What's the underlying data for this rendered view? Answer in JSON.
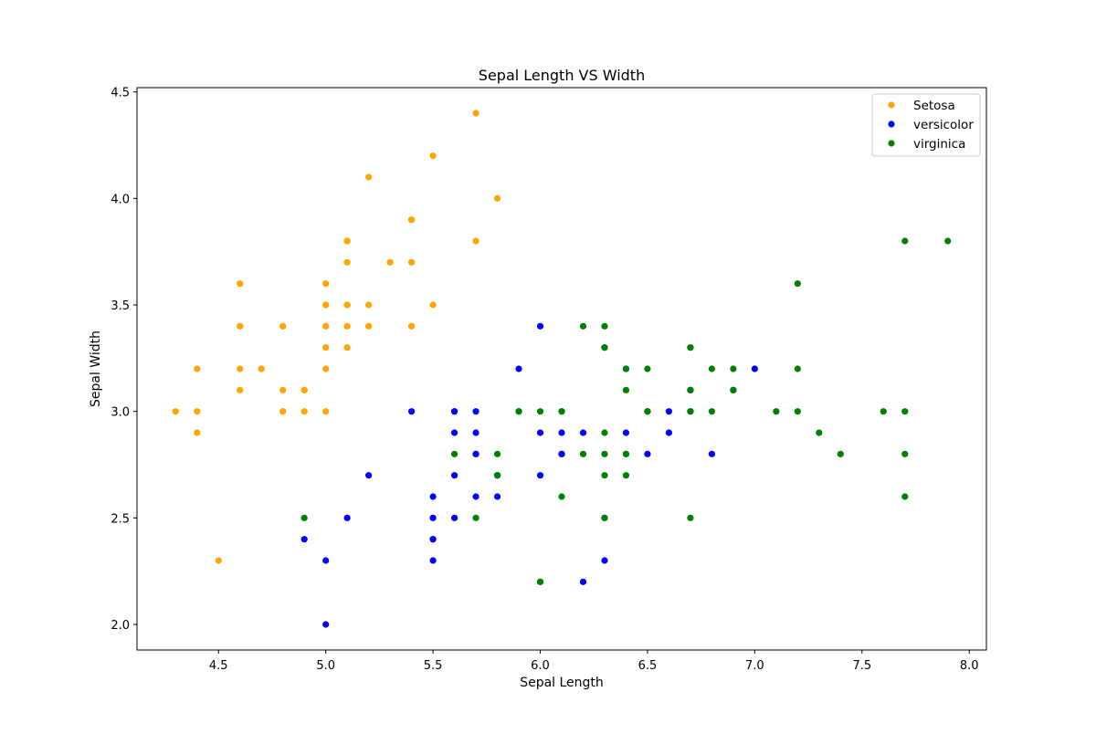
{
  "chart_data": {
    "type": "scatter",
    "title": "Sepal Length VS Width",
    "xlabel": "Sepal Length",
    "ylabel": "Sepal Width",
    "xlim": [
      4.12,
      8.08
    ],
    "ylim": [
      1.88,
      4.52
    ],
    "xticks": [
      "4.5",
      "5.0",
      "5.5",
      "6.0",
      "6.5",
      "7.0",
      "7.5",
      "8.0"
    ],
    "yticks": [
      "2.0",
      "2.5",
      "3.0",
      "3.5",
      "4.0",
      "4.5"
    ],
    "grid": false,
    "legend_position": "top-right",
    "series": [
      {
        "name": "Setosa",
        "color": "#ffa500",
        "points": [
          [
            5.1,
            3.5
          ],
          [
            4.9,
            3.0
          ],
          [
            4.7,
            3.2
          ],
          [
            4.6,
            3.1
          ],
          [
            5.0,
            3.6
          ],
          [
            5.4,
            3.9
          ],
          [
            4.6,
            3.4
          ],
          [
            5.0,
            3.4
          ],
          [
            4.4,
            2.9
          ],
          [
            4.9,
            3.1
          ],
          [
            5.4,
            3.7
          ],
          [
            4.8,
            3.4
          ],
          [
            4.8,
            3.0
          ],
          [
            4.3,
            3.0
          ],
          [
            5.8,
            4.0
          ],
          [
            5.7,
            4.4
          ],
          [
            5.4,
            3.9
          ],
          [
            5.1,
            3.5
          ],
          [
            5.7,
            3.8
          ],
          [
            5.1,
            3.8
          ],
          [
            5.4,
            3.4
          ],
          [
            5.1,
            3.7
          ],
          [
            4.6,
            3.6
          ],
          [
            5.1,
            3.3
          ],
          [
            4.8,
            3.4
          ],
          [
            5.0,
            3.0
          ],
          [
            5.0,
            3.4
          ],
          [
            5.2,
            3.5
          ],
          [
            5.2,
            3.4
          ],
          [
            4.7,
            3.2
          ],
          [
            4.8,
            3.1
          ],
          [
            5.4,
            3.4
          ],
          [
            5.2,
            4.1
          ],
          [
            5.5,
            4.2
          ],
          [
            4.9,
            3.1
          ],
          [
            5.0,
            3.2
          ],
          [
            5.5,
            3.5
          ],
          [
            4.9,
            3.1
          ],
          [
            4.4,
            3.0
          ],
          [
            5.1,
            3.4
          ],
          [
            5.0,
            3.5
          ],
          [
            4.5,
            2.3
          ],
          [
            4.4,
            3.2
          ],
          [
            5.0,
            3.5
          ],
          [
            5.1,
            3.8
          ],
          [
            4.8,
            3.0
          ],
          [
            5.1,
            3.8
          ],
          [
            4.6,
            3.2
          ],
          [
            5.3,
            3.7
          ],
          [
            5.0,
            3.3
          ]
        ]
      },
      {
        "name": "versicolor",
        "color": "#0000ff",
        "points": [
          [
            7.0,
            3.2
          ],
          [
            6.4,
            3.2
          ],
          [
            6.9,
            3.1
          ],
          [
            5.5,
            2.3
          ],
          [
            6.5,
            2.8
          ],
          [
            5.7,
            2.8
          ],
          [
            6.3,
            3.3
          ],
          [
            4.9,
            2.4
          ],
          [
            6.6,
            2.9
          ],
          [
            5.2,
            2.7
          ],
          [
            5.0,
            2.0
          ],
          [
            5.9,
            3.0
          ],
          [
            6.0,
            2.2
          ],
          [
            6.1,
            2.9
          ],
          [
            5.6,
            2.9
          ],
          [
            6.7,
            3.1
          ],
          [
            5.6,
            3.0
          ],
          [
            5.8,
            2.7
          ],
          [
            6.2,
            2.2
          ],
          [
            5.6,
            2.5
          ],
          [
            5.9,
            3.2
          ],
          [
            6.1,
            2.8
          ],
          [
            6.3,
            2.5
          ],
          [
            6.1,
            2.8
          ],
          [
            6.4,
            2.9
          ],
          [
            6.6,
            3.0
          ],
          [
            6.8,
            2.8
          ],
          [
            6.7,
            3.0
          ],
          [
            6.0,
            2.9
          ],
          [
            5.7,
            2.6
          ],
          [
            5.5,
            2.4
          ],
          [
            5.5,
            2.4
          ],
          [
            5.8,
            2.7
          ],
          [
            6.0,
            2.7
          ],
          [
            5.4,
            3.0
          ],
          [
            6.0,
            3.4
          ],
          [
            6.7,
            3.1
          ],
          [
            6.3,
            2.3
          ],
          [
            5.6,
            3.0
          ],
          [
            5.5,
            2.5
          ],
          [
            5.5,
            2.6
          ],
          [
            6.1,
            3.0
          ],
          [
            5.8,
            2.6
          ],
          [
            5.0,
            2.3
          ],
          [
            5.6,
            2.7
          ],
          [
            5.7,
            3.0
          ],
          [
            5.7,
            2.9
          ],
          [
            6.2,
            2.9
          ],
          [
            5.1,
            2.5
          ],
          [
            5.7,
            2.8
          ]
        ]
      },
      {
        "name": "virginica",
        "color": "#008000",
        "points": [
          [
            6.3,
            3.3
          ],
          [
            5.8,
            2.7
          ],
          [
            7.1,
            3.0
          ],
          [
            6.3,
            2.9
          ],
          [
            6.5,
            3.0
          ],
          [
            7.6,
            3.0
          ],
          [
            4.9,
            2.5
          ],
          [
            7.3,
            2.9
          ],
          [
            6.7,
            2.5
          ],
          [
            7.2,
            3.6
          ],
          [
            6.5,
            3.2
          ],
          [
            6.4,
            2.7
          ],
          [
            6.8,
            3.0
          ],
          [
            5.7,
            2.5
          ],
          [
            5.8,
            2.8
          ],
          [
            6.4,
            3.2
          ],
          [
            6.5,
            3.0
          ],
          [
            7.7,
            3.8
          ],
          [
            7.7,
            2.6
          ],
          [
            6.0,
            2.2
          ],
          [
            6.9,
            3.2
          ],
          [
            5.6,
            2.8
          ],
          [
            7.7,
            2.8
          ],
          [
            6.3,
            2.7
          ],
          [
            6.7,
            3.3
          ],
          [
            7.2,
            3.2
          ],
          [
            6.2,
            2.8
          ],
          [
            6.1,
            3.0
          ],
          [
            6.4,
            2.8
          ],
          [
            7.2,
            3.0
          ],
          [
            7.4,
            2.8
          ],
          [
            7.9,
            3.8
          ],
          [
            6.4,
            2.8
          ],
          [
            6.3,
            2.8
          ],
          [
            6.1,
            2.6
          ],
          [
            7.7,
            3.0
          ],
          [
            6.3,
            3.4
          ],
          [
            6.4,
            3.1
          ],
          [
            6.0,
            3.0
          ],
          [
            6.9,
            3.1
          ],
          [
            6.7,
            3.1
          ],
          [
            6.9,
            3.1
          ],
          [
            5.8,
            2.7
          ],
          [
            6.8,
            3.2
          ],
          [
            6.7,
            3.3
          ],
          [
            6.7,
            3.0
          ],
          [
            6.3,
            2.5
          ],
          [
            6.5,
            3.0
          ],
          [
            6.2,
            3.4
          ],
          [
            5.9,
            3.0
          ]
        ]
      }
    ]
  }
}
